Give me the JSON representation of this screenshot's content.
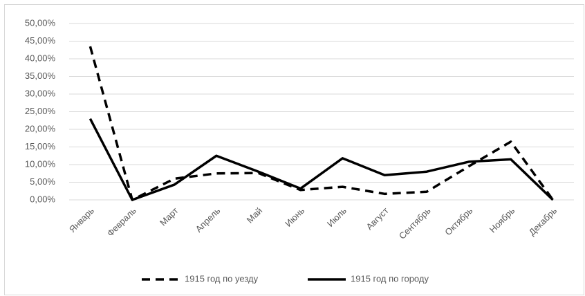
{
  "chart_data": {
    "type": "line",
    "categories": [
      "Январь",
      "Февраль",
      "Март",
      "Апрель",
      "Май",
      "Июнь",
      "Июль",
      "Август",
      "Сентябрь",
      "Октябрь",
      "Ноябрь",
      "Декабрь"
    ],
    "series": [
      {
        "name": "1915 год по уезду",
        "color": "#000000",
        "dash": true,
        "values": [
          43.5,
          0,
          6,
          7.5,
          7.6,
          2.8,
          3.7,
          1.7,
          2.3,
          9.5,
          16.5,
          0
        ]
      },
      {
        "name": "1915 год по городу",
        "color": "#000000",
        "dash": false,
        "values": [
          23,
          0,
          4.3,
          12.5,
          8,
          3.2,
          11.8,
          7,
          8,
          10.8,
          11.5,
          0
        ]
      }
    ],
    "ylim": [
      0,
      50
    ],
    "yticks": [
      {
        "value": 0,
        "label": "0,00%"
      },
      {
        "value": 5,
        "label": "5,00%"
      },
      {
        "value": 10,
        "label": "10,00%"
      },
      {
        "value": 15,
        "label": "15,00%"
      },
      {
        "value": 20,
        "label": "20,00%"
      },
      {
        "value": 25,
        "label": "25,00%"
      },
      {
        "value": 30,
        "label": "30,00%"
      },
      {
        "value": 35,
        "label": "35,00%"
      },
      {
        "value": 40,
        "label": "40,00%"
      },
      {
        "value": 45,
        "label": "45,00%"
      },
      {
        "value": 50,
        "label": "50,00%"
      }
    ],
    "grid": true,
    "legend": "bottom"
  }
}
